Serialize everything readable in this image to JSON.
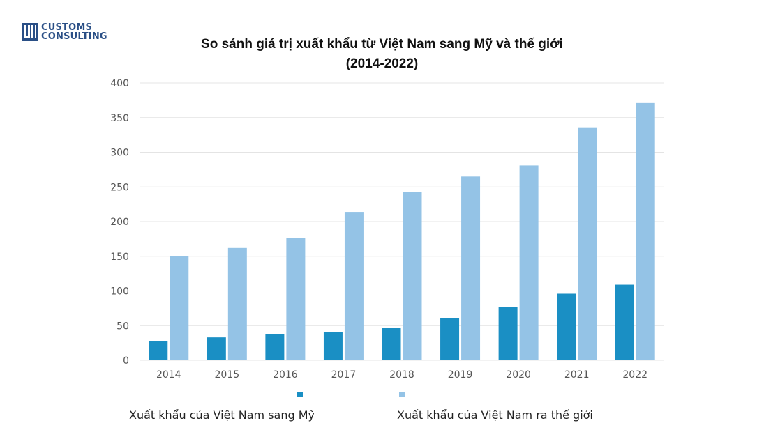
{
  "logo": {
    "line1": "CUSTOMS",
    "line2": "CONSULTING",
    "mark": "UNI"
  },
  "chart_data": {
    "type": "bar",
    "title": "So sánh giá trị xuất khẩu từ Việt Nam sang Mỹ và thế giới (2014-2022)",
    "title_line1": "So sánh giá trị xuất khẩu từ Việt Nam sang Mỹ và thế giới",
    "title_line2": "(2014-2022)",
    "categories": [
      "2014",
      "2015",
      "2016",
      "2017",
      "2018",
      "2019",
      "2020",
      "2021",
      "2022"
    ],
    "series": [
      {
        "name": "Xuất khẩu của Việt Nam sang Mỹ",
        "color": "#1a8fc4",
        "values": [
          28,
          33,
          38,
          41,
          47,
          61,
          77,
          96,
          109
        ]
      },
      {
        "name": "Xuất khẩu của Việt Nam ra thế giới",
        "color": "#94c3e6",
        "values": [
          150,
          162,
          176,
          214,
          243,
          265,
          281,
          336,
          371
        ]
      }
    ],
    "ylim": [
      0,
      400
    ],
    "yticks": [
      0,
      50,
      100,
      150,
      200,
      250,
      300,
      350,
      400
    ],
    "grid": true,
    "legend_position": "bottom"
  }
}
